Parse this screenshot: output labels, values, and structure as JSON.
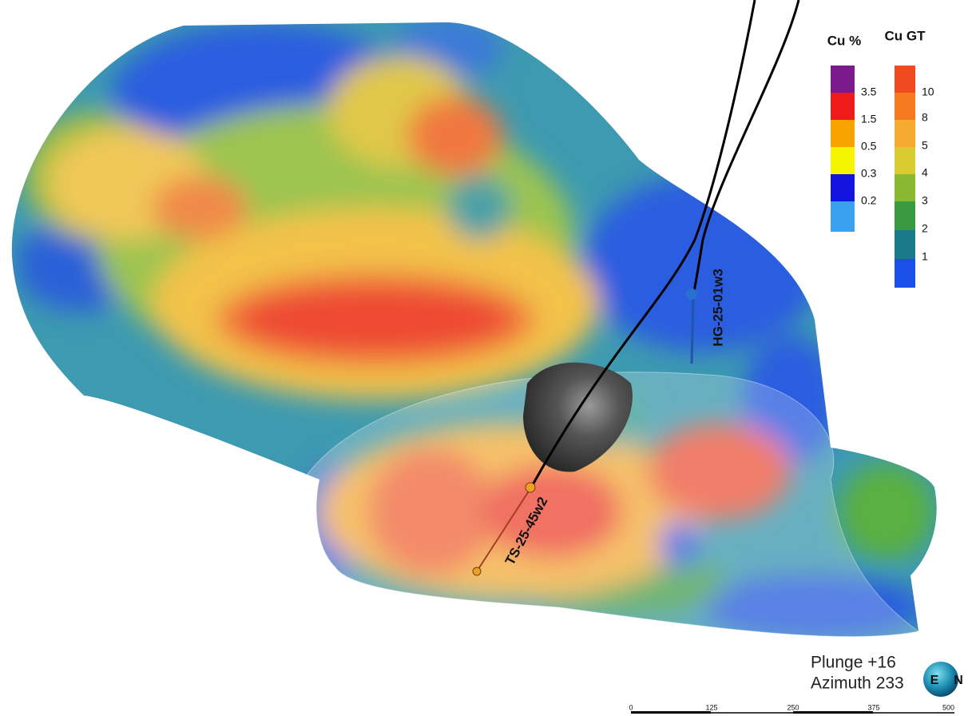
{
  "legend_cu_pct": {
    "title": "Cu %",
    "labels": [
      "3.5",
      "1.5",
      "0.5",
      "0.3",
      "0.2"
    ]
  },
  "legend_cu_gt": {
    "title": "Cu GT",
    "labels": [
      "10",
      "8",
      "5",
      "4",
      "3",
      "2",
      "1"
    ]
  },
  "drill_holes": [
    "HG-25-01w3",
    "TS-25-45w2"
  ],
  "view": {
    "plunge": "Plunge +16",
    "azimuth": "Azimuth 233"
  },
  "compass": {
    "east": "E",
    "north": "N"
  },
  "scale_bar": [
    "0",
    "125",
    "250",
    "375",
    "500"
  ]
}
